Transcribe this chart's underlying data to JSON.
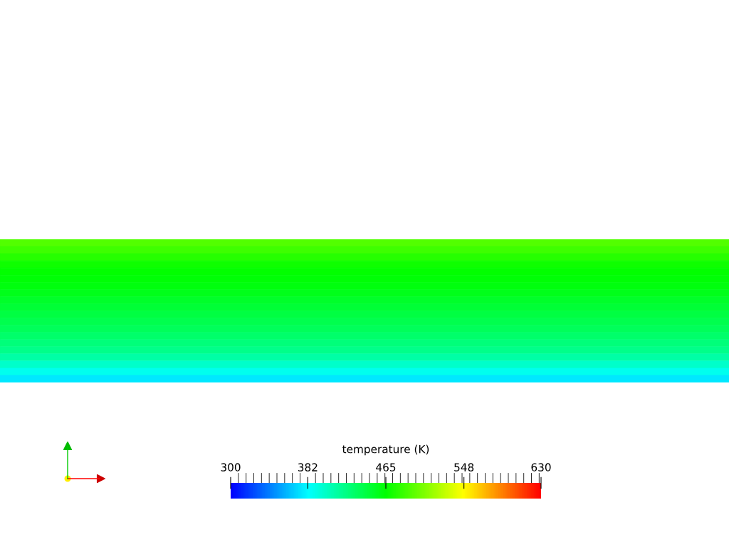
{
  "chart_data": {
    "type": "heatmap",
    "clabel": "temperature (K)",
    "categories": [
      null
    ],
    "y_categories": [
      null,
      null,
      null,
      null,
      null,
      null,
      null,
      null,
      null,
      null,
      null,
      null,
      null,
      null,
      null,
      null,
      null,
      null,
      null,
      null
    ],
    "cells": [
      [
        492
      ],
      [
        485
      ],
      [
        477
      ],
      [
        470
      ],
      [
        466
      ],
      [
        463
      ],
      [
        460
      ],
      [
        456
      ],
      [
        452
      ],
      [
        448
      ],
      [
        444
      ],
      [
        440
      ],
      [
        436
      ],
      [
        431
      ],
      [
        426
      ],
      [
        420
      ],
      [
        412
      ],
      [
        400
      ],
      [
        388
      ],
      [
        376
      ]
    ],
    "clim": [
      300,
      630
    ],
    "cticks": [
      300,
      382,
      465,
      548,
      630
    ]
  }
}
